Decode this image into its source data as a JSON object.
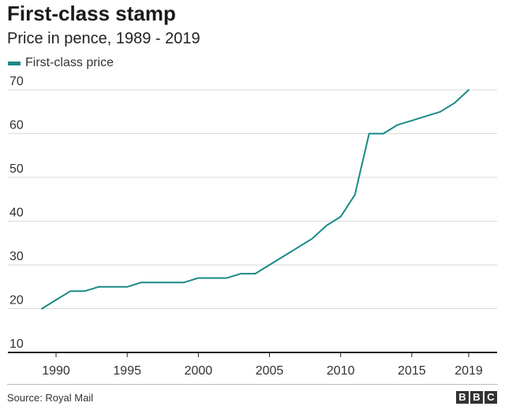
{
  "header": {
    "title": "First-class stamp",
    "subtitle": "Price in pence, 1989 - 2019"
  },
  "legend": {
    "label": "First-class price"
  },
  "footer": {
    "source": "Source: Royal Mail",
    "logo": [
      "B",
      "B",
      "C"
    ]
  },
  "colors": {
    "series": "#1a8a85",
    "axis": "#222222",
    "grid": "#d9d9d9",
    "logo_bg": "#333333"
  },
  "chart_data": {
    "type": "line",
    "title": "First-class stamp",
    "subtitle": "Price in pence, 1989 - 2019",
    "xlabel": "",
    "ylabel": "",
    "xlim": [
      1989,
      2019
    ],
    "ylim": [
      10,
      70
    ],
    "yticks": [
      10,
      20,
      30,
      40,
      50,
      60,
      70
    ],
    "xticks": [
      "1990",
      "1995",
      "2000",
      "2005",
      "2010",
      "2015",
      "2019"
    ],
    "grid": true,
    "legend_position": "top-left",
    "series": [
      {
        "name": "First-class price",
        "x": [
          1989,
          1990,
          1991,
          1992,
          1993,
          1994,
          1995,
          1996,
          1997,
          1998,
          1999,
          2000,
          2001,
          2002,
          2003,
          2004,
          2005,
          2006,
          2007,
          2008,
          2009,
          2010,
          2011,
          2012,
          2013,
          2014,
          2015,
          2016,
          2017,
          2018,
          2019
        ],
        "values": [
          20,
          22,
          24,
          24,
          25,
          25,
          25,
          26,
          26,
          26,
          26,
          27,
          27,
          27,
          28,
          28,
          30,
          32,
          34,
          36,
          39,
          41,
          46,
          60,
          60,
          62,
          63,
          64,
          65,
          67,
          70
        ]
      }
    ]
  }
}
